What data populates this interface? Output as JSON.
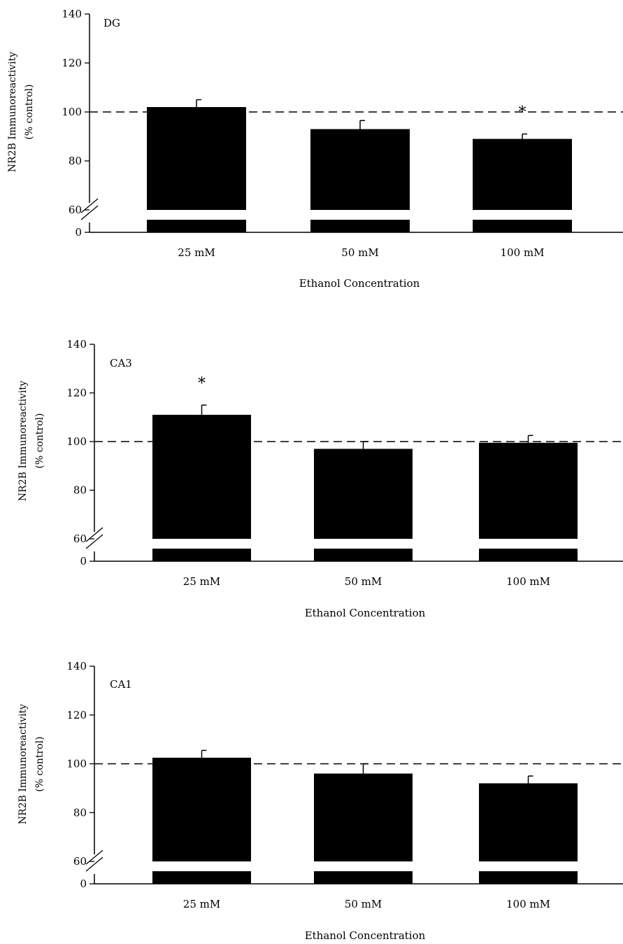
{
  "chart_data": [
    {
      "type": "bar",
      "panel_label": "DG",
      "categories": [
        "25 mM",
        "50 mM",
        "100 mM"
      ],
      "values": [
        102,
        93,
        89
      ],
      "errors": [
        3,
        3.5,
        2
      ],
      "significance": [
        "",
        "",
        "*"
      ],
      "ylabel_line1": "NR2B Immunoreactivity",
      "ylabel_line2": "(% control)",
      "xlabel": "Ethanol Concentration",
      "y_ticks": [
        "0",
        "60",
        "80",
        "100",
        "120",
        "140"
      ],
      "ylim": [
        60,
        140
      ],
      "axis_break": true,
      "reference_line": 100
    },
    {
      "type": "bar",
      "panel_label": "CA3",
      "categories": [
        "25 mM",
        "50 mM",
        "100 mM"
      ],
      "values": [
        111,
        97,
        99.5
      ],
      "errors": [
        4,
        3,
        3
      ],
      "significance": [
        "*",
        "",
        ""
      ],
      "ylabel_line1": "NR2B Immunoreactivity",
      "ylabel_line2": "(% control)",
      "xlabel": "Ethanol Concentration",
      "y_ticks": [
        "0",
        "60",
        "80",
        "100",
        "120",
        "140"
      ],
      "ylim": [
        60,
        140
      ],
      "axis_break": true,
      "reference_line": 100
    },
    {
      "type": "bar",
      "panel_label": "CA1",
      "categories": [
        "25 mM",
        "50 mM",
        "100 mM"
      ],
      "values": [
        102.5,
        96,
        92
      ],
      "errors": [
        3,
        4,
        3
      ],
      "significance": [
        "",
        "",
        ""
      ],
      "ylabel_line1": "NR2B Immunoreactivity",
      "ylabel_line2": "(% control)",
      "xlabel": "Ethanol Concentration",
      "y_ticks": [
        "0",
        "60",
        "80",
        "100",
        "120",
        "140"
      ],
      "ylim": [
        60,
        140
      ],
      "axis_break": true,
      "reference_line": 100
    }
  ]
}
